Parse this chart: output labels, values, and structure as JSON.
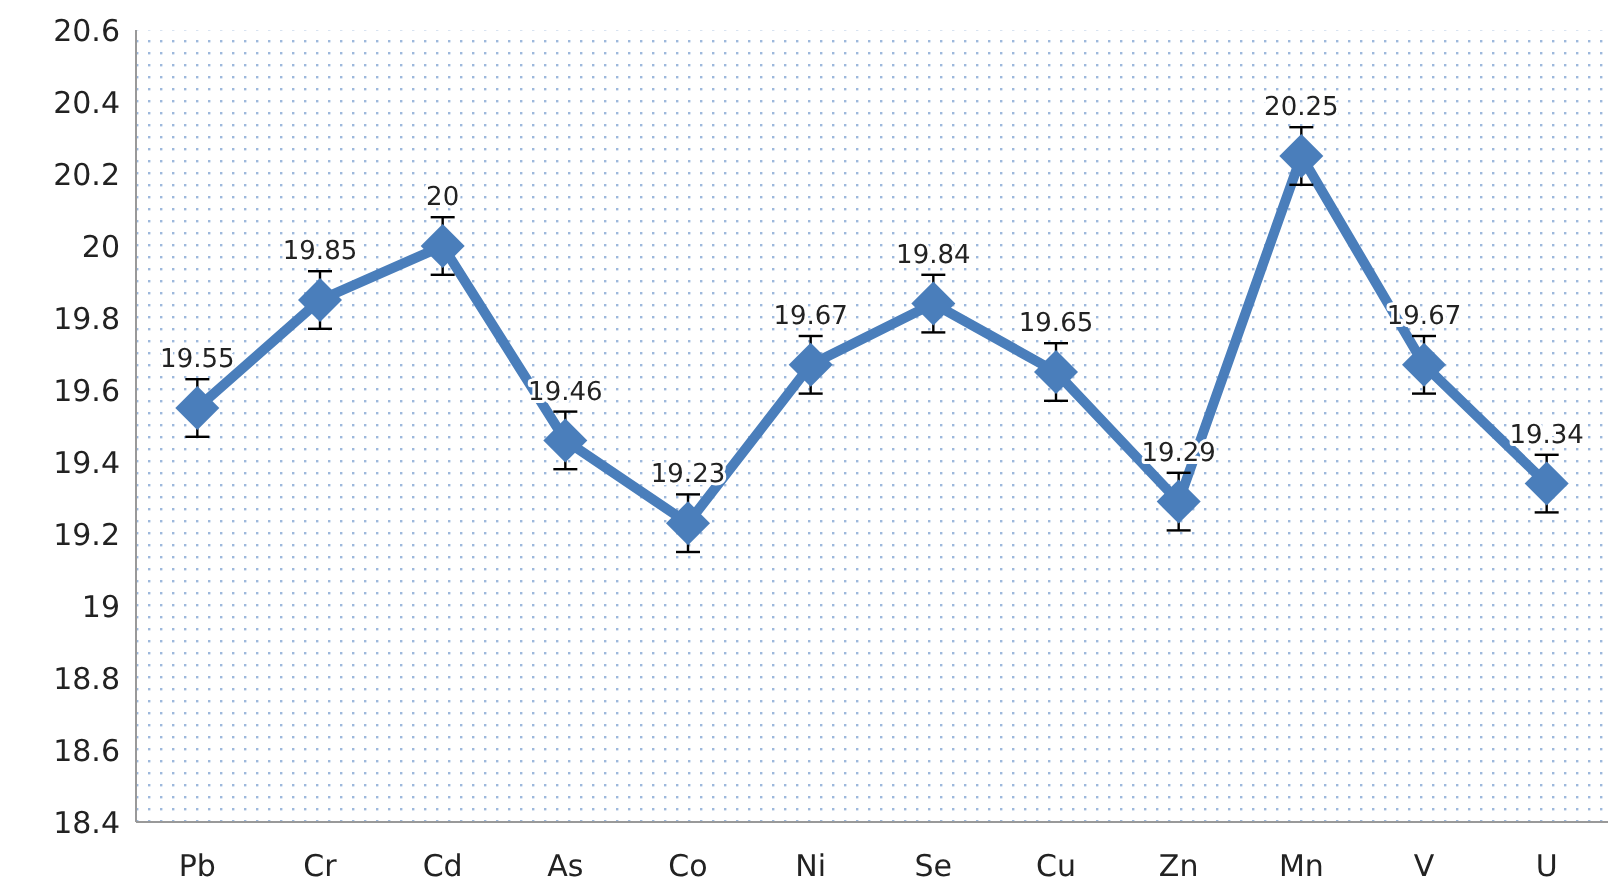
{
  "chart_data": {
    "type": "line",
    "categories": [
      "Pb",
      "Cr",
      "Cd",
      "As",
      "Co",
      "Ni",
      "Se",
      "Cu",
      "Zn",
      "Mn",
      "V",
      "U"
    ],
    "series": [
      {
        "color": "#4a7ebb",
        "values": [
          19.55,
          19.85,
          20,
          19.46,
          19.23,
          19.67,
          19.84,
          19.65,
          19.29,
          20.25,
          19.67,
          19.34
        ],
        "errors": [
          0.08,
          0.08,
          0.08,
          0.08,
          0.08,
          0.08,
          0.08,
          0.08,
          0.08,
          0.08,
          0.08,
          0.08
        ]
      }
    ],
    "data_labels": true,
    "marker": "diamond",
    "line_style": "solid",
    "grid": false,
    "ylim": [
      18.4,
      20.6
    ],
    "yticks": [
      {
        "value": 18.4,
        "label": "18.4"
      },
      {
        "value": 18.6,
        "label": "18.6"
      },
      {
        "value": 18.8,
        "label": "18.8"
      },
      {
        "value": 19,
        "label": "19"
      },
      {
        "value": 19.2,
        "label": "19.2"
      },
      {
        "value": 19.4,
        "label": "19.4"
      },
      {
        "value": 19.6,
        "label": "19.6"
      },
      {
        "value": 19.8,
        "label": "19.8"
      },
      {
        "value": 20,
        "label": "20"
      },
      {
        "value": 20.2,
        "label": "20.2"
      },
      {
        "value": 20.4,
        "label": "20.4"
      },
      {
        "value": 20.6,
        "label": "20.6"
      }
    ]
  }
}
